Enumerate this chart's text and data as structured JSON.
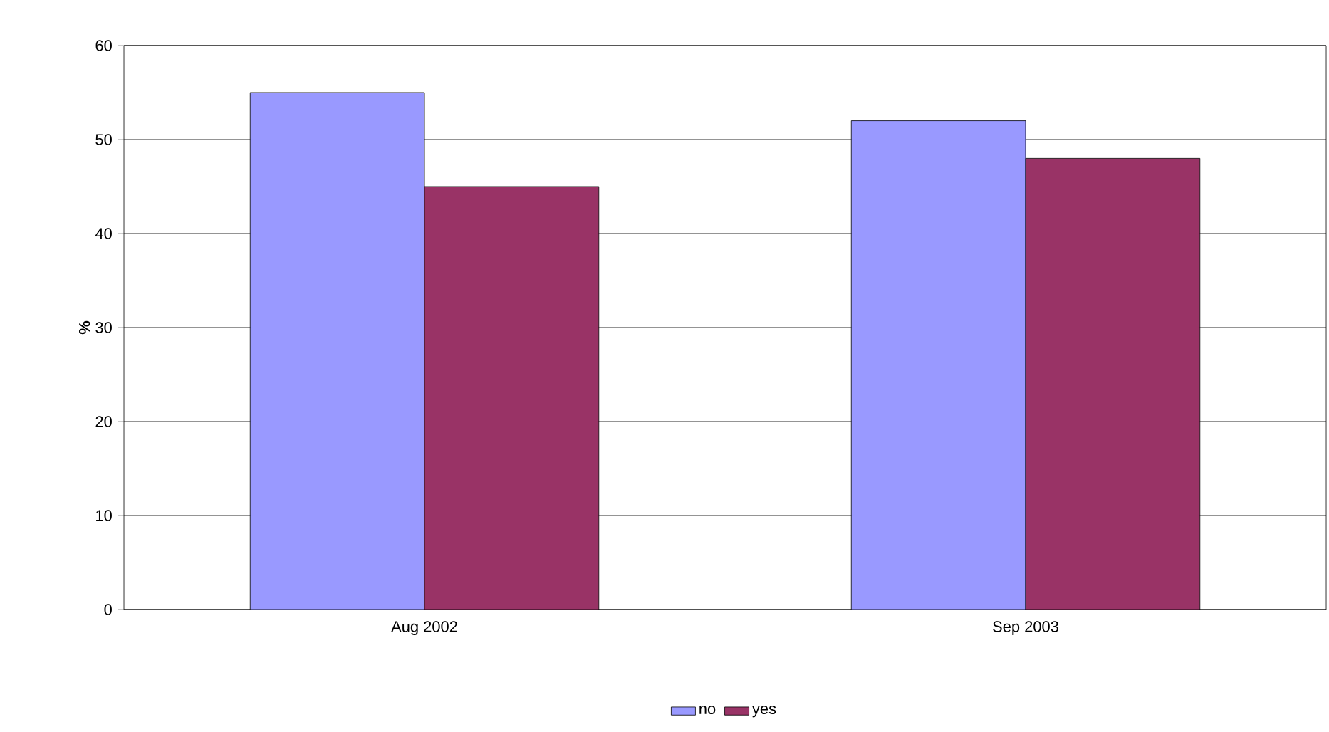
{
  "chart_data": {
    "type": "bar",
    "ylabel": "%",
    "categories": [
      "Aug 2002",
      "Sep 2003"
    ],
    "series": [
      {
        "name": "no",
        "color": "#9999ff",
        "values": [
          55,
          52
        ]
      },
      {
        "name": "yes",
        "color": "#993366",
        "values": [
          45,
          48
        ]
      }
    ],
    "ylim": [
      0,
      60
    ],
    "yticks": [
      0,
      10,
      20,
      30,
      40,
      50,
      60
    ],
    "grid": "y",
    "legend": "bottom"
  }
}
